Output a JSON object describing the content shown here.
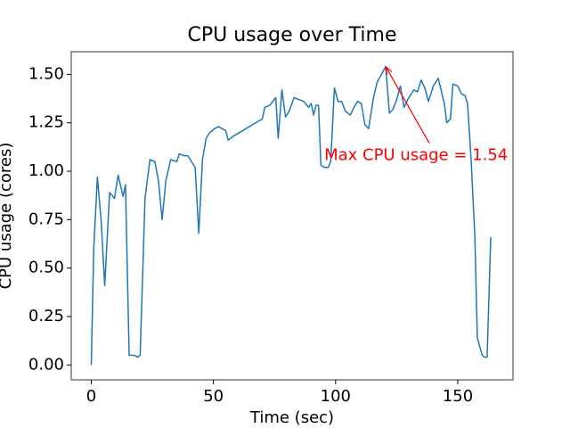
{
  "chart_data": {
    "type": "line",
    "title": "CPU usage over Time",
    "x_label": "Time (sec)",
    "y_label": "CPU usage (cores)",
    "x": [
      0,
      1,
      2.5,
      4,
      5.5,
      7.5,
      9.5,
      11,
      13,
      14,
      15.5,
      17.5,
      19,
      20,
      22,
      24,
      26,
      27.5,
      29,
      30.5,
      32.5,
      35,
      36,
      38,
      39.5,
      41.5,
      42.5,
      44,
      45.5,
      47,
      48.5,
      50.5,
      52,
      55,
      56,
      58,
      70,
      71,
      73,
      75.5,
      76.5,
      78,
      79.5,
      81,
      83,
      85,
      87,
      89,
      90,
      91,
      92,
      93,
      94,
      95.5,
      97,
      98,
      99.5,
      101,
      102.5,
      104,
      106,
      107.5,
      109,
      110.5,
      112,
      113.5,
      115.5,
      117,
      120.5,
      122,
      123.5,
      125,
      126.5,
      128,
      130,
      132,
      133.5,
      135,
      136.5,
      138,
      140,
      142,
      144.5,
      145.5,
      147,
      148,
      150,
      151.5,
      153,
      154,
      155.5,
      157,
      158,
      160,
      161,
      162,
      163.5
    ],
    "values": [
      0,
      0.6,
      0.97,
      0.75,
      0.41,
      0.89,
      0.86,
      0.98,
      0.87,
      0.93,
      0.05,
      0.05,
      0.04,
      0.05,
      0.86,
      1.06,
      1.05,
      0.95,
      0.75,
      0.95,
      1.06,
      1.05,
      1.09,
      1.08,
      1.08,
      1.04,
      1.02,
      0.68,
      1.06,
      1.17,
      1.2,
      1.22,
      1.23,
      1.21,
      1.16,
      1.18,
      1.27,
      1.33,
      1.34,
      1.38,
      1.17,
      1.42,
      1.28,
      1.31,
      1.38,
      1.37,
      1.36,
      1.33,
      1.35,
      1.29,
      1.34,
      1.34,
      1.03,
      1.02,
      1.02,
      1.05,
      1.43,
      1.36,
      1.36,
      1.31,
      1.29,
      1.33,
      1.36,
      1.35,
      1.24,
      1.22,
      1.38,
      1.46,
      1.54,
      1.3,
      1.32,
      1.37,
      1.44,
      1.33,
      1.38,
      1.42,
      1.41,
      1.47,
      1.43,
      1.36,
      1.44,
      1.48,
      1.35,
      1.25,
      1.27,
      1.45,
      1.44,
      1.4,
      1.39,
      1.35,
      1.05,
      0.66,
      0.14,
      0.05,
      0.04,
      0.04,
      0.66
    ],
    "color": "#1f77b4",
    "xlim": [
      -8.2,
      172.6
    ],
    "ylim": [
      -0.077,
      1.617
    ],
    "xticks": [
      0,
      50,
      100,
      150
    ],
    "yticks": [
      {
        "value": 0,
        "label": "0.00"
      },
      {
        "value": 0.25,
        "label": "0.25"
      },
      {
        "value": 0.5,
        "label": "0.50"
      },
      {
        "value": 0.75,
        "label": "0.75"
      },
      {
        "value": 1,
        "label": "1.00"
      },
      {
        "value": 1.25,
        "label": "1.25"
      },
      {
        "value": 1.5,
        "label": "1.50"
      }
    ],
    "annotation": {
      "text": "Max CPU usage = 1.54",
      "x": 120.5,
      "y": 1.54,
      "color": "red"
    }
  }
}
